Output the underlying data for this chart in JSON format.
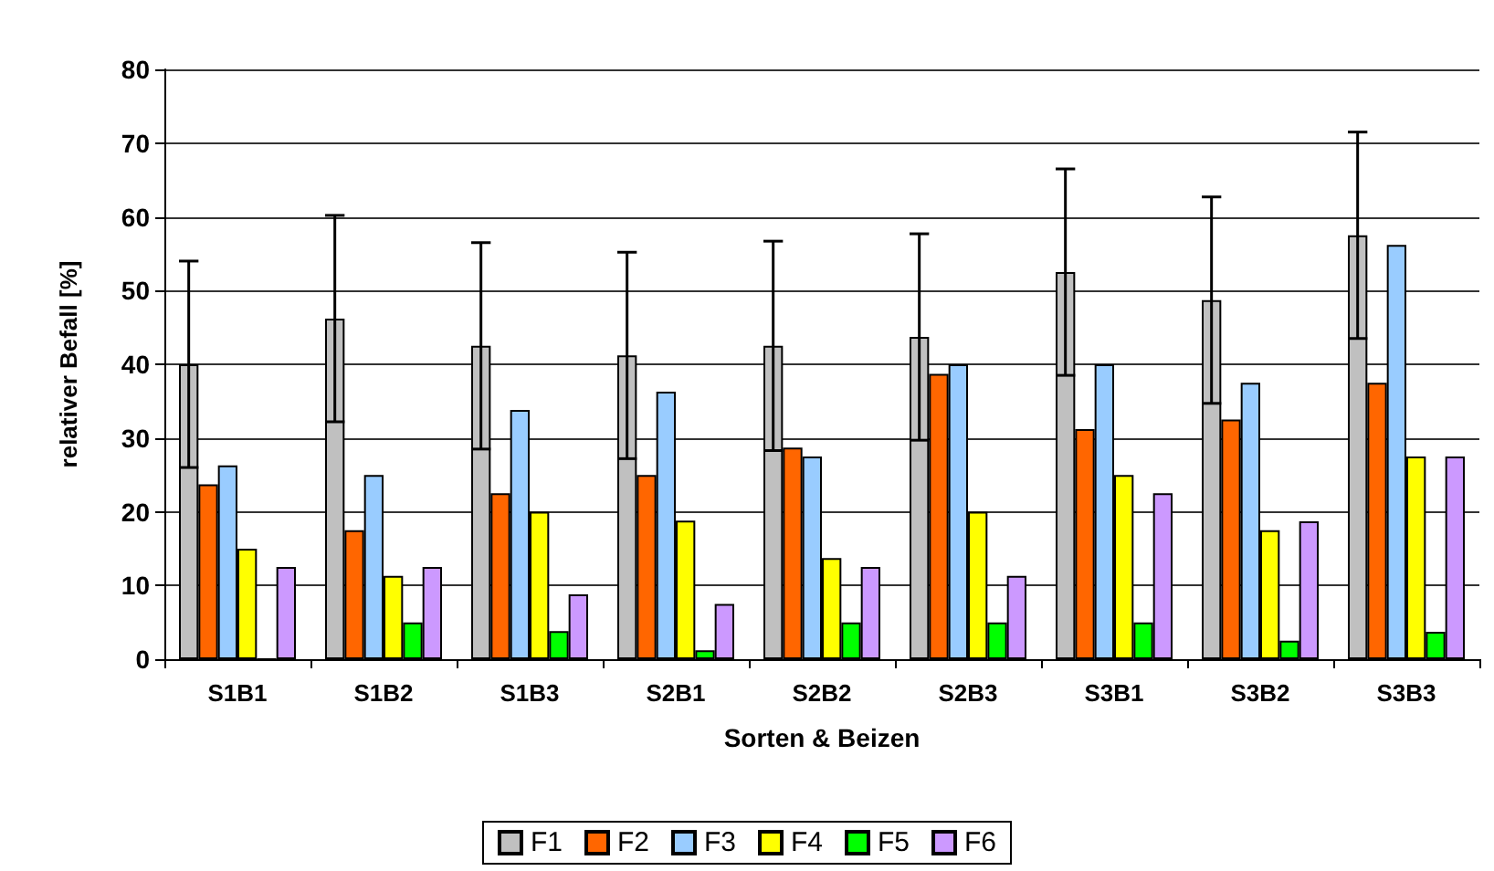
{
  "chart_data": {
    "type": "bar",
    "xlabel": "Sorten & Beizen",
    "ylabel": "relativer Befall [%]",
    "categories": [
      "S1B1",
      "S1B2",
      "S1B3",
      "S2B1",
      "S2B2",
      "S2B3",
      "S3B1",
      "S3B2",
      "S3B3"
    ],
    "series": [
      {
        "name": "F1",
        "color": "#c0c0c0",
        "values": [
          40,
          46.2,
          42.5,
          41.2,
          42.5,
          43.7,
          52.5,
          48.7,
          57.5
        ],
        "errors": [
          14,
          14,
          14,
          14,
          14.2,
          14,
          14,
          14,
          14
        ]
      },
      {
        "name": "F2",
        "color": "#ff6600",
        "values": [
          23.7,
          17.5,
          22.5,
          25,
          28.7,
          38.7,
          31.2,
          32.5,
          37.5
        ]
      },
      {
        "name": "F3",
        "color": "#99ccff",
        "values": [
          26.3,
          25,
          33.8,
          36.3,
          27.5,
          40,
          40,
          37.5,
          56.2
        ]
      },
      {
        "name": "F4",
        "color": "#ffff00",
        "values": [
          15,
          11.3,
          20,
          18.8,
          13.7,
          20,
          25,
          17.5,
          27.5
        ]
      },
      {
        "name": "F5",
        "color": "#00ff00",
        "values": [
          0,
          5,
          3.8,
          1.2,
          5,
          5,
          5,
          2.5,
          3.7
        ]
      },
      {
        "name": "F6",
        "color": "#cc99ff",
        "values": [
          12.5,
          12.5,
          8.8,
          7.5,
          12.5,
          11.3,
          22.5,
          18.7,
          27.5
        ]
      }
    ],
    "ylim": [
      0,
      80
    ],
    "yticks": [
      0,
      10,
      20,
      30,
      40,
      50,
      60,
      70,
      80
    ],
    "grid": "y",
    "legend": "bottom"
  }
}
